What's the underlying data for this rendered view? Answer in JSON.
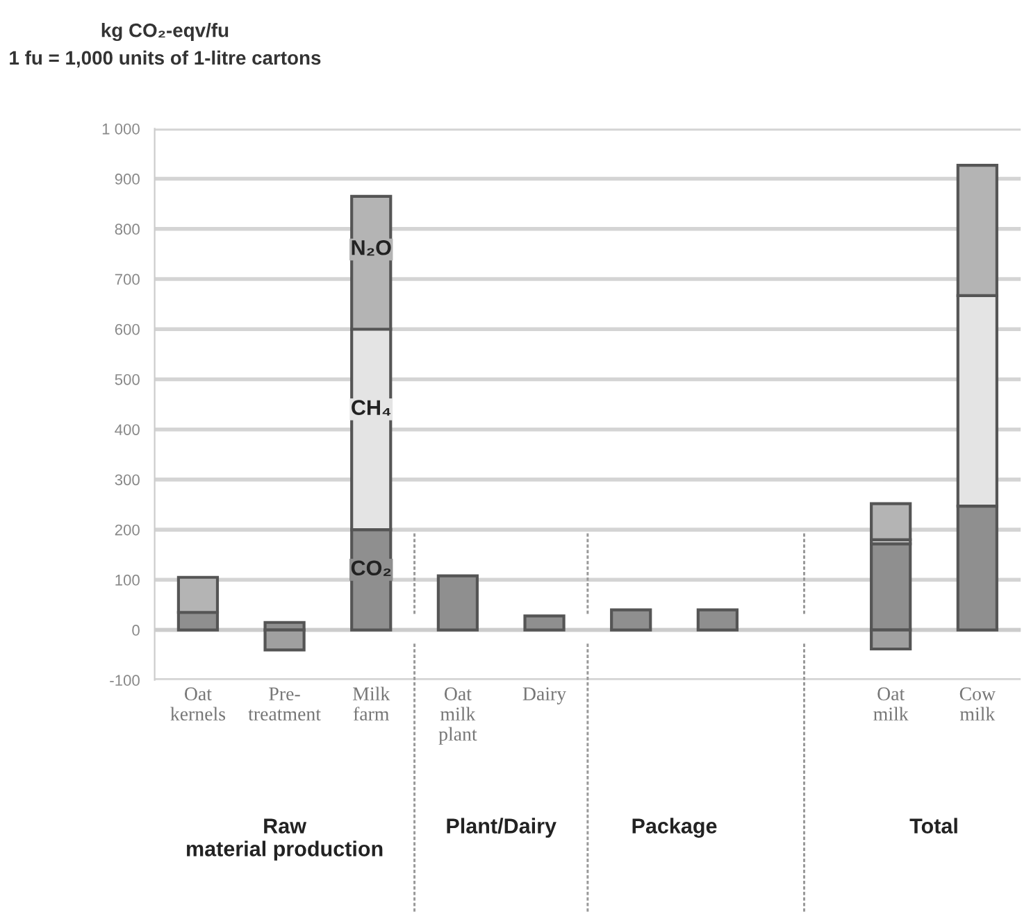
{
  "chart_data": {
    "type": "bar",
    "stacked": true,
    "title": "kg CO₂-eqv/fu",
    "subtitle": "1 fu = 1,000 units of 1-litre cartons",
    "categories": [
      "Oat kernels",
      "Pre-treatment",
      "Milk farm",
      "Oat milk plant",
      "Dairy",
      null,
      null,
      null,
      "Oat milk",
      "Cow milk"
    ],
    "series": [
      {
        "color": "#8f8f8f",
        "values": [
          35,
          15,
          200,
          108,
          28,
          40,
          40,
          null,
          172,
          247
        ]
      },
      {
        "color": "#e4e4e4",
        "values": [
          null,
          null,
          400,
          null,
          null,
          null,
          null,
          null,
          8,
          420
        ]
      },
      {
        "color": "#b4b4b4",
        "values": [
          70,
          null,
          265,
          null,
          null,
          null,
          null,
          null,
          72,
          260
        ]
      },
      {
        "color": "#a0a0a0",
        "values": [
          null,
          -40,
          null,
          null,
          null,
          null,
          null,
          null,
          -38,
          null
        ]
      }
    ],
    "ylim": [
      -100,
      1000
    ],
    "yticks": [
      -100,
      0,
      100,
      200,
      300,
      400,
      500,
      600,
      700,
      800,
      900,
      {
        "value": 1000,
        "label": "1 000"
      }
    ],
    "grid": "y",
    "legend": false,
    "annotations": [
      "CO₂",
      "CH₄",
      "N₂O",
      "Raw material production",
      "Plant/Dairy",
      "Package",
      "Total"
    ]
  }
}
